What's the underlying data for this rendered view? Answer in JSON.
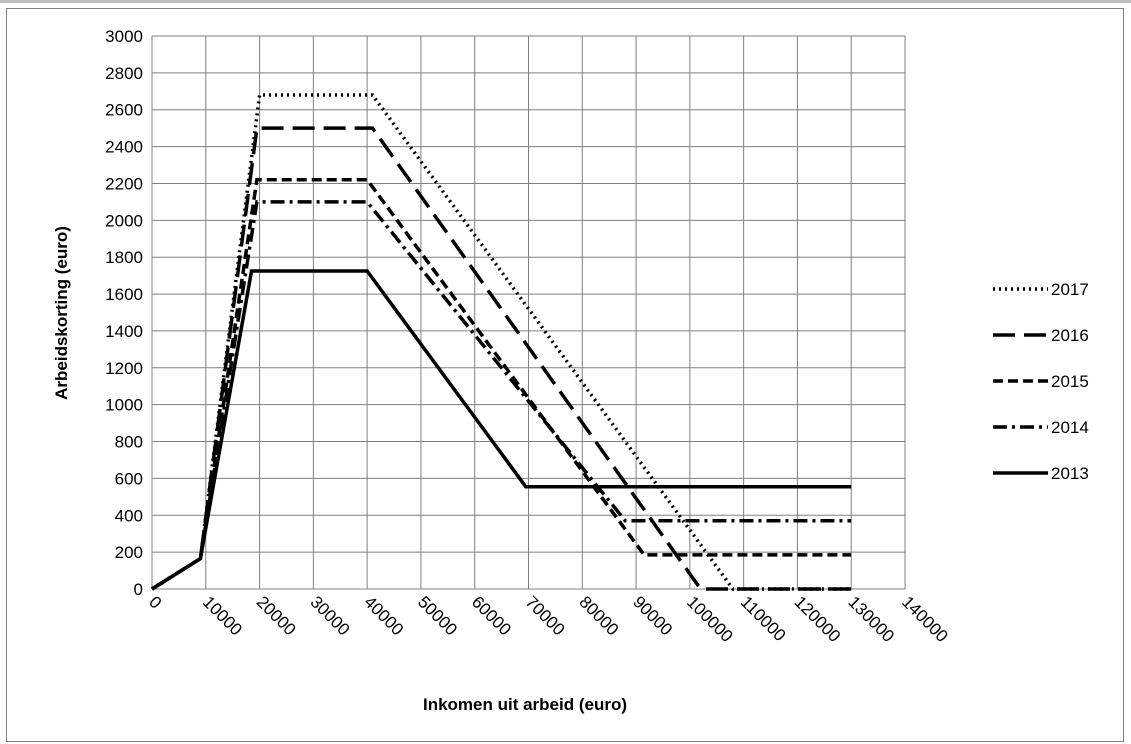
{
  "chart_data": {
    "type": "line",
    "title": "",
    "xlabel": "Inkomen uit arbeid (euro)",
    "ylabel": "Arbeidskorting (euro)",
    "xlim": [
      0,
      140000
    ],
    "ylim": [
      0,
      3000
    ],
    "x_ticks": [
      0,
      10000,
      20000,
      30000,
      40000,
      50000,
      60000,
      70000,
      80000,
      90000,
      100000,
      110000,
      120000,
      130000,
      140000
    ],
    "y_ticks": [
      0,
      200,
      400,
      600,
      800,
      1000,
      1200,
      1400,
      1600,
      1800,
      2000,
      2200,
      2400,
      2600,
      2800,
      3000
    ],
    "grid": true,
    "legend_position": "right",
    "series": [
      {
        "name": "2017",
        "style": "dotted",
        "x": [
          0,
          9000,
          20000,
          41000,
          108000,
          130000
        ],
        "y": [
          0,
          165,
          2680,
          2680,
          0,
          0
        ]
      },
      {
        "name": "2016",
        "style": "long-dash",
        "x": [
          0,
          9000,
          19500,
          41000,
          102000,
          130000
        ],
        "y": [
          0,
          165,
          2500,
          2500,
          0,
          0
        ]
      },
      {
        "name": "2015",
        "style": "dash",
        "x": [
          0,
          9000,
          19500,
          40000,
          91500,
          130000
        ],
        "y": [
          0,
          165,
          2220,
          2220,
          185,
          185
        ]
      },
      {
        "name": "2014",
        "style": "dash-dot",
        "x": [
          0,
          9000,
          19500,
          40000,
          88000,
          130000
        ],
        "y": [
          0,
          165,
          2100,
          2100,
          370,
          370
        ]
      },
      {
        "name": "2013",
        "style": "solid",
        "x": [
          0,
          9000,
          18500,
          40000,
          69500,
          130000
        ],
        "y": [
          0,
          165,
          1725,
          1725,
          555,
          555
        ]
      }
    ]
  }
}
